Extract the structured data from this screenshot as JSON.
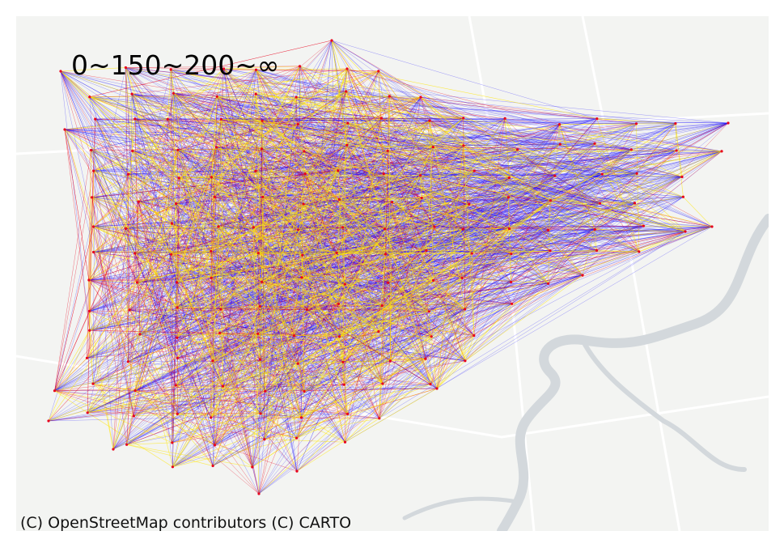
{
  "legend": {
    "title": "0~150~200~∞"
  },
  "attribution": "(C) OpenStreetMap contributors (C) CARTO",
  "colors": {
    "land": "#f3f4f2",
    "water": "#d3d8dc",
    "road": "#ffffff",
    "low_band": "#ffe600",
    "mid_band": "#e8001c",
    "high_band": "#1a10ff"
  },
  "network": {
    "bands": [
      "0~150",
      "150~200",
      "200~∞"
    ]
  }
}
